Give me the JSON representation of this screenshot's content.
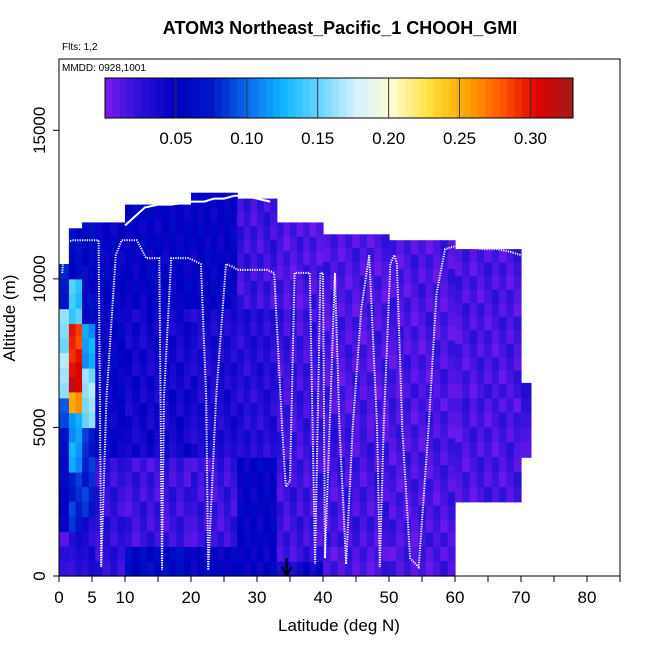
{
  "chart_data": {
    "type": "heatmap",
    "title": "ATOM3 Northeast_Pacific_1 CHOOH_GMI",
    "annotation_flights": "Flts: 1,2",
    "annotation_dates": "MMDD: 0928,1001",
    "xlabel": "Latitude (deg N)",
    "ylabel": "Altitude (m)",
    "xlim": [
      0,
      85
    ],
    "ylim": [
      0,
      17500
    ],
    "x_ticks": [
      0,
      5,
      10,
      20,
      30,
      40,
      50,
      60,
      70,
      80
    ],
    "x_minor_ticks": [
      0,
      5,
      10,
      15,
      20,
      25,
      30,
      35,
      40,
      45,
      50,
      55,
      60,
      65,
      70,
      75,
      80,
      85
    ],
    "y_ticks": [
      0,
      5000,
      10000,
      15000
    ],
    "colorbar": {
      "ticks": [
        0.05,
        0.1,
        0.15,
        0.2,
        0.25,
        0.3
      ],
      "tick_labels": [
        "0.05",
        "0.10",
        "0.15",
        "0.20",
        "0.25",
        "0.30"
      ],
      "range": [
        0,
        0.33
      ],
      "stops": [
        "#7a1bef",
        "#2a0fd8",
        "#0000c0",
        "#0018c8",
        "#0a6ef0",
        "#10b8ff",
        "#6cd6ff",
        "#d8f2ff",
        "#fffbd0",
        "#ffe040",
        "#ffa800",
        "#ff5a00",
        "#e00000",
        "#9e1c1c"
      ]
    },
    "background_value": 0.015,
    "columns": [
      {
        "x": [
          0,
          1.5
        ],
        "ytop": 10500,
        "bands": [
          [
            0,
            1500,
            0.02
          ],
          [
            1500,
            3500,
            0.05
          ],
          [
            3500,
            5000,
            0.06
          ],
          [
            5000,
            6000,
            0.09
          ],
          [
            6000,
            9000,
            0.16
          ],
          [
            9000,
            10500,
            0.08
          ]
        ]
      },
      {
        "x": [
          1.5,
          3.5
        ],
        "ytop": 11700,
        "bands": [
          [
            0,
            1500,
            0.03
          ],
          [
            1500,
            3500,
            0.08
          ],
          [
            3500,
            5500,
            0.12
          ],
          [
            5500,
            6200,
            0.26
          ],
          [
            6200,
            7200,
            0.31
          ],
          [
            7200,
            8500,
            0.29
          ],
          [
            8500,
            10000,
            0.14
          ],
          [
            10000,
            11700,
            0.06
          ]
        ]
      },
      {
        "x": [
          3.5,
          5.5
        ],
        "ytop": 11900,
        "bands": [
          [
            0,
            2000,
            0.03
          ],
          [
            2000,
            5000,
            0.08
          ],
          [
            5000,
            7000,
            0.16
          ],
          [
            7000,
            8500,
            0.12
          ],
          [
            8500,
            11900,
            0.06
          ]
        ]
      },
      {
        "x": [
          5.5,
          10
        ],
        "ytop": 11900,
        "bands": [
          [
            0,
            4000,
            0.025
          ],
          [
            4000,
            8000,
            0.05
          ],
          [
            8000,
            11900,
            0.05
          ]
        ]
      },
      {
        "x": [
          10,
          20
        ],
        "ytop": 12500,
        "bands": [
          [
            0,
            1000,
            0.06
          ],
          [
            1000,
            4000,
            0.02
          ],
          [
            4000,
            9000,
            0.04
          ],
          [
            9000,
            12500,
            0.05
          ]
        ]
      },
      {
        "x": [
          20,
          27
        ],
        "ytop": 12900,
        "bands": [
          [
            0,
            1000,
            0.05
          ],
          [
            1000,
            4000,
            0.02
          ],
          [
            4000,
            9000,
            0.035
          ],
          [
            9000,
            12900,
            0.05
          ]
        ]
      },
      {
        "x": [
          27,
          33
        ],
        "ytop": 12700,
        "bands": [
          [
            0,
            500,
            0.05
          ],
          [
            500,
            4000,
            0.05
          ],
          [
            4000,
            9000,
            0.03
          ],
          [
            9000,
            12700,
            0.02
          ]
        ]
      },
      {
        "x": [
          33,
          40
        ],
        "ytop": 11900,
        "bands": [
          [
            0,
            500,
            0.04
          ],
          [
            500,
            3000,
            0.02
          ],
          [
            3000,
            9000,
            0.02
          ],
          [
            9000,
            11900,
            0.015
          ]
        ]
      },
      {
        "x": [
          40,
          50
        ],
        "ytop": 11500,
        "bands": [
          [
            0,
            1000,
            0.015
          ],
          [
            1000,
            5000,
            0.018
          ],
          [
            5000,
            11500,
            0.015
          ]
        ]
      },
      {
        "x": [
          50,
          60
        ],
        "ytop": 11300,
        "bands": [
          [
            0,
            1000,
            0.015
          ],
          [
            1000,
            6000,
            0.016
          ],
          [
            6000,
            11300,
            0.015
          ]
        ]
      },
      {
        "x": [
          60,
          70
        ],
        "ytop": 11000,
        "bands": [
          [
            2500,
            6000,
            0.016
          ],
          [
            6000,
            11000,
            0.016
          ]
        ]
      },
      {
        "x": [
          70,
          71.5
        ],
        "ytop": 6500,
        "bands": [
          [
            4000,
            6500,
            0.02
          ]
        ]
      }
    ],
    "flight_track": {
      "lat": [
        0.5,
        0.8,
        2.0,
        3.0,
        4.0,
        5.0,
        5.6,
        6.0,
        6.4,
        7.2,
        8.6,
        9.5,
        10.0,
        11.8,
        13.2,
        14.5,
        15.2,
        15.6,
        15.9,
        17.0,
        18.3,
        19.6,
        20.6,
        21.5,
        22.3,
        22.6,
        23.8,
        25.3,
        26.4,
        27.0,
        28.4,
        30.0,
        31.5,
        32.6,
        33.8,
        34.3,
        34.4,
        35.0,
        35.7,
        36.8,
        38.0,
        38.8,
        39.6,
        40.0,
        40.3,
        41.0,
        41.8,
        42.5,
        43.5,
        44.5,
        45.8,
        47.0,
        48.2,
        48.6,
        49.2,
        50.2,
        50.8,
        51.2,
        52.0,
        53.2,
        54.5,
        56.0,
        57.2,
        58.5,
        60.0,
        62.0,
        64.0,
        66.5,
        68.5,
        70.0,
        70.8
      ],
      "alt": [
        10200,
        11200,
        11300,
        11300,
        11300,
        11300,
        11300,
        11300,
        300,
        6000,
        10800,
        11300,
        11300,
        11300,
        10700,
        10700,
        10700,
        200,
        6000,
        10700,
        10700,
        10700,
        10600,
        10500,
        6000,
        200,
        6000,
        10500,
        10400,
        10300,
        10300,
        10300,
        10300,
        10200,
        5000,
        3200,
        3000,
        3200,
        10200,
        10200,
        10200,
        400,
        10200,
        10200,
        600,
        5000,
        10200,
        5000,
        400,
        5000,
        9000,
        10800,
        5000,
        300,
        5000,
        10500,
        10800,
        10500,
        5000,
        600,
        300,
        5000,
        9500,
        11000,
        11100,
        11100,
        11000,
        11000,
        10900,
        10800,
        10700
      ],
      "track_rise": "upper flight tracks at ~12000–12800 m between 10–33 deg N",
      "upper": [
        [
          10,
          11800
        ],
        [
          13,
          12400
        ],
        [
          15,
          12500
        ],
        [
          17,
          12500
        ],
        [
          20,
          12600
        ],
        [
          22,
          12600
        ],
        [
          23.5,
          12700
        ],
        [
          25,
          12700
        ],
        [
          26.6,
          12800
        ],
        [
          28,
          12800
        ],
        [
          30,
          12700
        ],
        [
          32,
          12600
        ]
      ]
    },
    "marker": {
      "x": 34.5,
      "y_top": 600,
      "label": "arrow"
    }
  }
}
